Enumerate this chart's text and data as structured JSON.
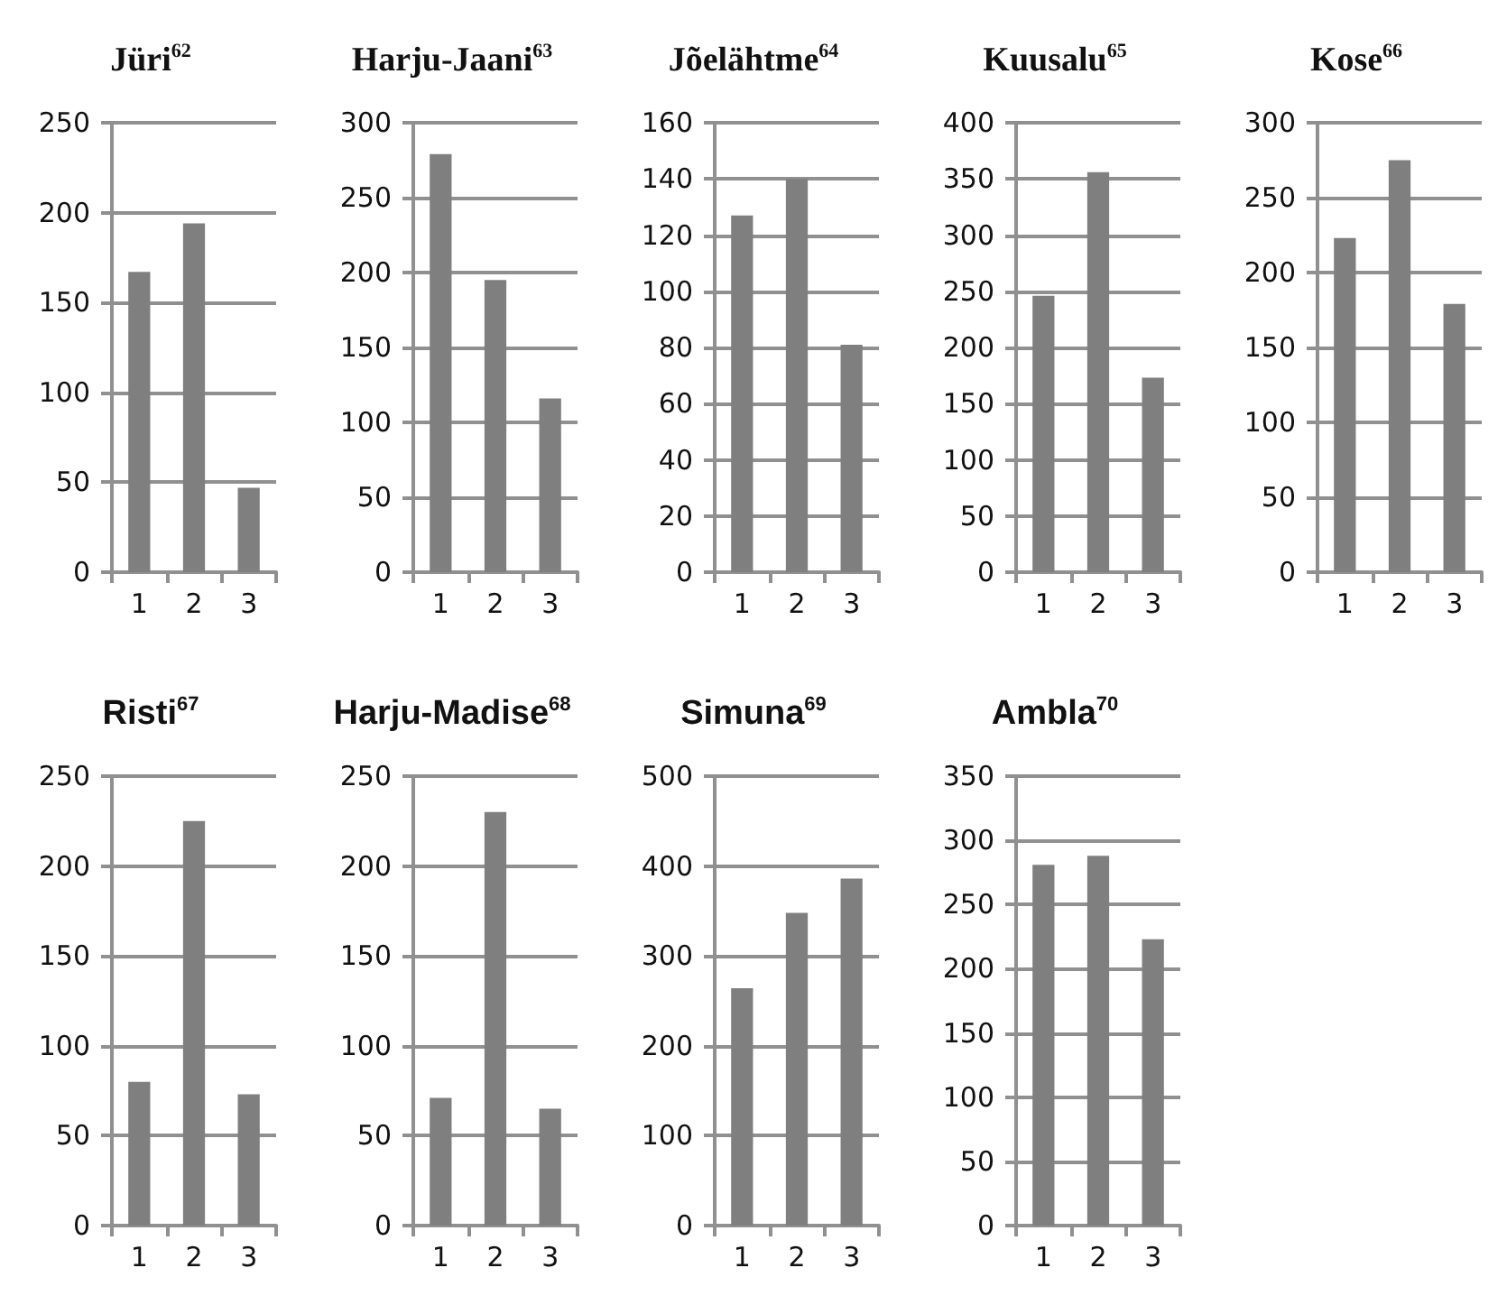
{
  "chart_data": [
    {
      "type": "bar",
      "title": "Jüri$^{62}$",
      "categories": [
        "1",
        "2",
        "3"
      ],
      "values": [
        167,
        194,
        47
      ],
      "color": "#7f7f7f",
      "ylim": [
        0,
        250
      ],
      "yticks": [
        0,
        50,
        100,
        150,
        200,
        250
      ],
      "grid": "y"
    },
    {
      "type": "bar",
      "title": "Harju-Jaani$^{63}$",
      "categories": [
        "1",
        "2",
        "3"
      ],
      "values": [
        279,
        195,
        116
      ],
      "color": "#7f7f7f",
      "ylim": [
        0,
        300
      ],
      "yticks": [
        0,
        50,
        100,
        150,
        200,
        250,
        300
      ],
      "grid": "y"
    },
    {
      "type": "bar",
      "title": "Jõelähtme$^{64}$",
      "categories": [
        "1",
        "2",
        "3"
      ],
      "values": [
        127,
        140,
        81
      ],
      "color": "#7f7f7f",
      "ylim": [
        0,
        160
      ],
      "yticks": [
        0,
        20,
        40,
        60,
        80,
        100,
        120,
        140,
        160
      ],
      "grid": "y"
    },
    {
      "type": "bar",
      "title": "Kuusalu$^{65}$",
      "categories": [
        "1",
        "2",
        "3"
      ],
      "values": [
        246,
        356,
        173
      ],
      "color": "#7f7f7f",
      "ylim": [
        0,
        400
      ],
      "yticks": [
        0,
        50,
        100,
        150,
        200,
        250,
        300,
        350,
        400
      ],
      "grid": "y"
    },
    {
      "type": "bar",
      "title": "Kose$^{66}$",
      "categories": [
        "1",
        "2",
        "3"
      ],
      "values": [
        223,
        275,
        179
      ],
      "color": "#7f7f7f",
      "ylim": [
        0,
        300
      ],
      "yticks": [
        0,
        50,
        100,
        150,
        200,
        250,
        300
      ],
      "grid": "y"
    },
    {
      "type": "bar",
      "title": "Risti$^{67}$",
      "categories": [
        "1",
        "2",
        "3"
      ],
      "values": [
        80,
        225,
        73
      ],
      "color": "#7f7f7f",
      "ylim": [
        0,
        250
      ],
      "yticks": [
        0,
        50,
        100,
        150,
        200,
        250
      ],
      "grid": "y"
    },
    {
      "type": "bar",
      "title": "Harju-Madise$^{68}$",
      "categories": [
        "1",
        "2",
        "3"
      ],
      "values": [
        71,
        230,
        65
      ],
      "color": "#7f7f7f",
      "ylim": [
        0,
        250
      ],
      "yticks": [
        0,
        50,
        100,
        150,
        200,
        250
      ],
      "grid": "y"
    },
    {
      "type": "bar",
      "title": "Simuna$^{69}$",
      "categories": [
        "1",
        "2",
        "3"
      ],
      "values": [
        264,
        348,
        386
      ],
      "color": "#7f7f7f",
      "ylim": [
        0,
        500
      ],
      "yticks": [
        0,
        100,
        200,
        300,
        400,
        500
      ],
      "grid": "y"
    },
    {
      "type": "bar",
      "title": "Ambla$^{70}$",
      "categories": [
        "1",
        "2",
        "3"
      ],
      "values": [
        281,
        288,
        223
      ],
      "color": "#7f7f7f",
      "ylim": [
        0,
        350
      ],
      "yticks": [
        0,
        50,
        100,
        150,
        200,
        250,
        300,
        350
      ],
      "grid": "y"
    }
  ]
}
